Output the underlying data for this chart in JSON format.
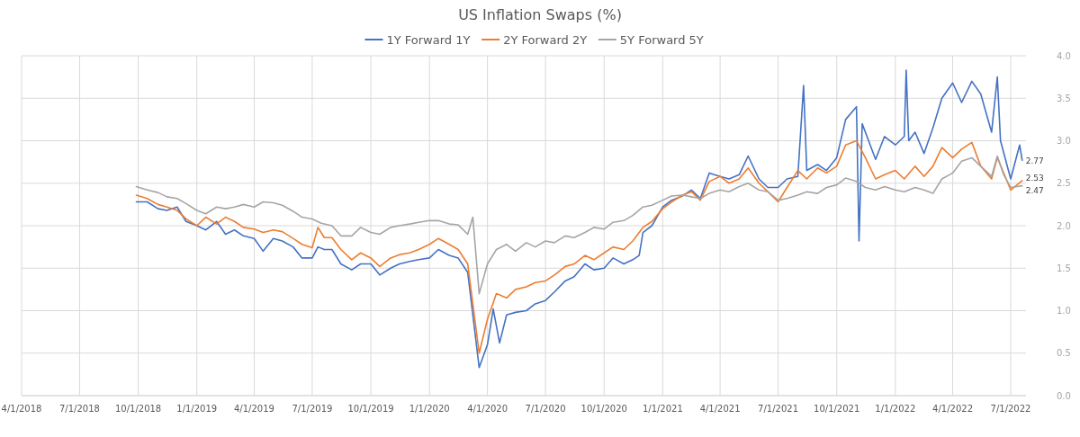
{
  "chart_data": {
    "type": "line",
    "title": "US Inflation Swaps (%)",
    "legend": "top",
    "grid": true,
    "line_style": "solid",
    "marker": "none",
    "xlim": [
      "2018-04-01",
      "2022-07-25"
    ],
    "ylim": [
      0,
      4
    ],
    "yticks": [
      {
        "value": 0,
        "label": "0.0"
      },
      {
        "value": 0.5,
        "label": "0.5"
      },
      {
        "value": 1,
        "label": "1.0"
      },
      {
        "value": 1.5,
        "label": "1.5"
      },
      {
        "value": 2,
        "label": "2.0"
      },
      {
        "value": 2.5,
        "label": "2.5"
      },
      {
        "value": 3,
        "label": "3.0"
      },
      {
        "value": 3.5,
        "label": "3.5"
      },
      {
        "value": 4,
        "label": "4.0"
      }
    ],
    "xticks": [
      {
        "value": "2018-04-01",
        "label": "4/1/2018"
      },
      {
        "value": "2018-07-01",
        "label": "7/1/2018"
      },
      {
        "value": "2018-10-01",
        "label": "10/1/2018"
      },
      {
        "value": "2019-01-01",
        "label": "1/1/2019"
      },
      {
        "value": "2019-04-01",
        "label": "4/1/2019"
      },
      {
        "value": "2019-07-01",
        "label": "7/1/2019"
      },
      {
        "value": "2019-10-01",
        "label": "10/1/2019"
      },
      {
        "value": "2020-01-01",
        "label": "1/1/2020"
      },
      {
        "value": "2020-04-01",
        "label": "4/1/2020"
      },
      {
        "value": "2020-07-01",
        "label": "7/1/2020"
      },
      {
        "value": "2020-10-01",
        "label": "10/1/2020"
      },
      {
        "value": "2021-01-01",
        "label": "1/1/2021"
      },
      {
        "value": "2021-04-01",
        "label": "4/1/2021"
      },
      {
        "value": "2021-07-01",
        "label": "7/1/2021"
      },
      {
        "value": "2021-10-01",
        "label": "10/1/2021"
      },
      {
        "value": "2022-01-01",
        "label": "1/1/2022"
      },
      {
        "value": "2022-04-01",
        "label": "4/1/2022"
      },
      {
        "value": "2022-07-01",
        "label": "7/1/2022"
      }
    ],
    "annotations": [
      {
        "text": "2.77",
        "x": "2022-07-19",
        "y": 2.77
      },
      {
        "text": "2.53",
        "x": "2022-07-19",
        "y": 2.53
      },
      {
        "text": "2.47",
        "x": "2022-07-19",
        "y": 2.47
      }
    ],
    "series": [
      {
        "name": "1Y Forward 1Y",
        "color": "#4472c4",
        "x": [
          "2018-09-28",
          "2018-10-15",
          "2018-11-01",
          "2018-11-15",
          "2018-12-01",
          "2018-12-15",
          "2019-01-01",
          "2019-01-15",
          "2019-02-01",
          "2019-02-15",
          "2019-03-01",
          "2019-03-15",
          "2019-04-01",
          "2019-04-15",
          "2019-05-01",
          "2019-05-15",
          "2019-06-01",
          "2019-06-15",
          "2019-07-01",
          "2019-07-10",
          "2019-07-20",
          "2019-08-01",
          "2019-08-15",
          "2019-09-01",
          "2019-09-15",
          "2019-10-01",
          "2019-10-15",
          "2019-11-01",
          "2019-11-15",
          "2019-12-01",
          "2019-12-15",
          "2020-01-01",
          "2020-01-15",
          "2020-02-01",
          "2020-02-15",
          "2020-03-01",
          "2020-03-19",
          "2020-04-01",
          "2020-04-10",
          "2020-04-20",
          "2020-05-01",
          "2020-05-15",
          "2020-06-01",
          "2020-06-15",
          "2020-07-01",
          "2020-07-15",
          "2020-08-01",
          "2020-08-15",
          "2020-09-01",
          "2020-09-15",
          "2020-10-01",
          "2020-10-15",
          "2020-11-01",
          "2020-11-15",
          "2020-11-25",
          "2020-12-01",
          "2020-12-15",
          "2021-01-01",
          "2021-01-15",
          "2021-02-01",
          "2021-02-15",
          "2021-03-01",
          "2021-03-15",
          "2021-04-01",
          "2021-04-15",
          "2021-05-01",
          "2021-05-15",
          "2021-06-01",
          "2021-06-15",
          "2021-07-01",
          "2021-07-15",
          "2021-08-01",
          "2021-08-10",
          "2021-08-15",
          "2021-09-01",
          "2021-09-15",
          "2021-10-01",
          "2021-10-15",
          "2021-11-01",
          "2021-11-05",
          "2021-11-10",
          "2021-11-20",
          "2021-12-01",
          "2021-12-15",
          "2022-01-01",
          "2022-01-15",
          "2022-01-18",
          "2022-01-22",
          "2022-02-01",
          "2022-02-15",
          "2022-03-01",
          "2022-03-15",
          "2022-04-01",
          "2022-04-15",
          "2022-05-01",
          "2022-05-15",
          "2022-06-01",
          "2022-06-10",
          "2022-06-15",
          "2022-07-01",
          "2022-07-15",
          "2022-07-19"
        ],
        "values": [
          2.28,
          2.28,
          2.2,
          2.18,
          2.22,
          2.05,
          2.0,
          1.95,
          2.05,
          1.9,
          1.95,
          1.88,
          1.85,
          1.7,
          1.85,
          1.82,
          1.75,
          1.62,
          1.62,
          1.75,
          1.72,
          1.72,
          1.55,
          1.48,
          1.55,
          1.55,
          1.42,
          1.5,
          1.55,
          1.58,
          1.6,
          1.62,
          1.72,
          1.65,
          1.62,
          1.45,
          0.33,
          0.6,
          1.02,
          0.62,
          0.95,
          0.98,
          1.0,
          1.08,
          1.12,
          1.22,
          1.35,
          1.4,
          1.55,
          1.48,
          1.5,
          1.62,
          1.55,
          1.6,
          1.65,
          1.92,
          2.0,
          2.22,
          2.3,
          2.35,
          2.42,
          2.32,
          2.62,
          2.58,
          2.55,
          2.6,
          2.82,
          2.55,
          2.45,
          2.45,
          2.55,
          2.58,
          3.65,
          2.65,
          2.72,
          2.65,
          2.8,
          3.25,
          3.4,
          1.82,
          3.2,
          3.0,
          2.78,
          3.05,
          2.95,
          3.05,
          3.83,
          3.0,
          3.1,
          2.85,
          3.15,
          3.5,
          3.68,
          3.45,
          3.7,
          3.55,
          3.1,
          3.75,
          3.0,
          2.55,
          2.95,
          2.77
        ]
      },
      {
        "name": "2Y Forward 2Y",
        "color": "#ed7d31",
        "x": [
          "2018-09-28",
          "2018-10-15",
          "2018-11-01",
          "2018-11-15",
          "2018-12-01",
          "2018-12-15",
          "2019-01-01",
          "2019-01-15",
          "2019-02-01",
          "2019-02-15",
          "2019-03-01",
          "2019-03-15",
          "2019-04-01",
          "2019-04-15",
          "2019-05-01",
          "2019-05-15",
          "2019-06-01",
          "2019-06-15",
          "2019-07-01",
          "2019-07-10",
          "2019-07-20",
          "2019-08-01",
          "2019-08-15",
          "2019-09-01",
          "2019-09-15",
          "2019-10-01",
          "2019-10-15",
          "2019-11-01",
          "2019-11-15",
          "2019-12-01",
          "2019-12-15",
          "2020-01-01",
          "2020-01-15",
          "2020-02-01",
          "2020-02-15",
          "2020-03-01",
          "2020-03-19",
          "2020-04-01",
          "2020-04-15",
          "2020-05-01",
          "2020-05-15",
          "2020-06-01",
          "2020-06-15",
          "2020-07-01",
          "2020-07-15",
          "2020-08-01",
          "2020-08-15",
          "2020-09-01",
          "2020-09-15",
          "2020-10-01",
          "2020-10-15",
          "2020-11-01",
          "2020-11-15",
          "2020-12-01",
          "2020-12-15",
          "2021-01-01",
          "2021-01-15",
          "2021-02-01",
          "2021-02-15",
          "2021-03-01",
          "2021-03-15",
          "2021-04-01",
          "2021-04-15",
          "2021-05-01",
          "2021-05-15",
          "2021-06-01",
          "2021-06-15",
          "2021-07-01",
          "2021-07-15",
          "2021-08-01",
          "2021-08-15",
          "2021-09-01",
          "2021-09-15",
          "2021-10-01",
          "2021-10-15",
          "2021-11-01",
          "2021-11-15",
          "2021-12-01",
          "2021-12-15",
          "2022-01-01",
          "2022-01-15",
          "2022-02-01",
          "2022-02-15",
          "2022-03-01",
          "2022-03-15",
          "2022-04-01",
          "2022-04-15",
          "2022-05-01",
          "2022-05-15",
          "2022-06-01",
          "2022-06-10",
          "2022-06-20",
          "2022-07-01",
          "2022-07-19"
        ],
        "values": [
          2.36,
          2.32,
          2.25,
          2.22,
          2.18,
          2.08,
          2.0,
          2.1,
          2.02,
          2.1,
          2.05,
          1.98,
          1.96,
          1.92,
          1.95,
          1.93,
          1.85,
          1.78,
          1.74,
          1.98,
          1.86,
          1.86,
          1.72,
          1.6,
          1.68,
          1.62,
          1.52,
          1.62,
          1.66,
          1.68,
          1.72,
          1.78,
          1.85,
          1.78,
          1.72,
          1.55,
          0.5,
          0.9,
          1.2,
          1.15,
          1.25,
          1.28,
          1.33,
          1.35,
          1.42,
          1.52,
          1.55,
          1.65,
          1.6,
          1.68,
          1.75,
          1.72,
          1.82,
          1.98,
          2.05,
          2.2,
          2.28,
          2.36,
          2.4,
          2.3,
          2.52,
          2.58,
          2.5,
          2.55,
          2.68,
          2.5,
          2.4,
          2.28,
          2.45,
          2.65,
          2.55,
          2.68,
          2.62,
          2.7,
          2.95,
          3.0,
          2.8,
          2.55,
          2.6,
          2.65,
          2.55,
          2.7,
          2.58,
          2.7,
          2.92,
          2.8,
          2.9,
          2.98,
          2.7,
          2.55,
          2.8,
          2.62,
          2.42,
          2.53
        ]
      },
      {
        "name": "5Y Forward 5Y",
        "color": "#a5a5a5",
        "x": [
          "2018-09-28",
          "2018-10-15",
          "2018-11-01",
          "2018-11-15",
          "2018-12-01",
          "2018-12-15",
          "2019-01-01",
          "2019-01-15",
          "2019-02-01",
          "2019-02-15",
          "2019-03-01",
          "2019-03-15",
          "2019-04-01",
          "2019-04-15",
          "2019-05-01",
          "2019-05-15",
          "2019-06-01",
          "2019-06-15",
          "2019-07-01",
          "2019-07-15",
          "2019-08-01",
          "2019-08-15",
          "2019-09-01",
          "2019-09-15",
          "2019-10-01",
          "2019-10-15",
          "2019-11-01",
          "2019-11-15",
          "2019-12-01",
          "2019-12-15",
          "2020-01-01",
          "2020-01-15",
          "2020-02-01",
          "2020-02-15",
          "2020-03-01",
          "2020-03-09",
          "2020-03-19",
          "2020-04-01",
          "2020-04-15",
          "2020-05-01",
          "2020-05-15",
          "2020-06-01",
          "2020-06-15",
          "2020-07-01",
          "2020-07-15",
          "2020-08-01",
          "2020-08-15",
          "2020-09-01",
          "2020-09-15",
          "2020-10-01",
          "2020-10-15",
          "2020-11-01",
          "2020-11-15",
          "2020-12-01",
          "2020-12-15",
          "2021-01-01",
          "2021-01-15",
          "2021-02-01",
          "2021-02-15",
          "2021-03-01",
          "2021-03-15",
          "2021-04-01",
          "2021-04-15",
          "2021-05-01",
          "2021-05-15",
          "2021-06-01",
          "2021-06-15",
          "2021-07-01",
          "2021-07-15",
          "2021-08-01",
          "2021-08-15",
          "2021-09-01",
          "2021-09-15",
          "2021-10-01",
          "2021-10-15",
          "2021-11-01",
          "2021-11-15",
          "2021-12-01",
          "2021-12-15",
          "2022-01-01",
          "2022-01-15",
          "2022-02-01",
          "2022-02-15",
          "2022-03-01",
          "2022-03-15",
          "2022-04-01",
          "2022-04-15",
          "2022-05-01",
          "2022-05-15",
          "2022-06-01",
          "2022-06-10",
          "2022-06-20",
          "2022-07-01",
          "2022-07-19"
        ],
        "values": [
          2.46,
          2.42,
          2.39,
          2.34,
          2.32,
          2.26,
          2.18,
          2.14,
          2.22,
          2.2,
          2.22,
          2.25,
          2.22,
          2.28,
          2.27,
          2.24,
          2.17,
          2.1,
          2.08,
          2.03,
          2.0,
          1.88,
          1.88,
          1.98,
          1.92,
          1.9,
          1.98,
          2.0,
          2.02,
          2.04,
          2.06,
          2.06,
          2.02,
          2.01,
          1.9,
          2.1,
          1.2,
          1.55,
          1.72,
          1.78,
          1.7,
          1.8,
          1.75,
          1.82,
          1.8,
          1.88,
          1.86,
          1.92,
          1.98,
          1.96,
          2.04,
          2.06,
          2.12,
          2.22,
          2.24,
          2.3,
          2.35,
          2.36,
          2.34,
          2.32,
          2.38,
          2.42,
          2.4,
          2.46,
          2.5,
          2.42,
          2.4,
          2.3,
          2.32,
          2.36,
          2.4,
          2.38,
          2.45,
          2.48,
          2.56,
          2.52,
          2.45,
          2.42,
          2.46,
          2.42,
          2.4,
          2.45,
          2.42,
          2.38,
          2.55,
          2.62,
          2.76,
          2.8,
          2.7,
          2.58,
          2.82,
          2.6,
          2.45,
          2.47
        ]
      }
    ]
  }
}
